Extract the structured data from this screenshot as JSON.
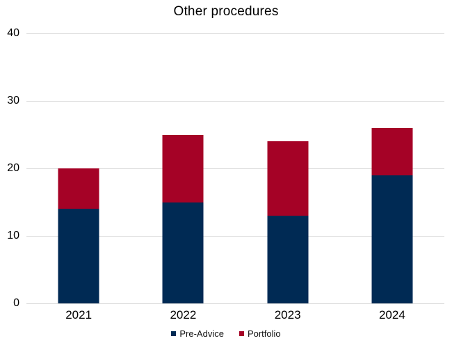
{
  "chart_data": {
    "type": "bar",
    "stacked": true,
    "title": "Other procedures",
    "categories": [
      "2021",
      "2022",
      "2023",
      "2024"
    ],
    "series": [
      {
        "name": "Pre-Advice",
        "color": "#002A54",
        "values": [
          14,
          15,
          13,
          19
        ]
      },
      {
        "name": "Portfolio",
        "color": "#A50226",
        "values": [
          6,
          10,
          11,
          7
        ]
      }
    ],
    "totals": [
      20,
      25,
      24,
      26
    ],
    "xlabel": "",
    "ylabel": "",
    "ylim": [
      0,
      40
    ],
    "yticks": [
      0,
      10,
      20,
      30,
      40
    ],
    "grid": true,
    "gridline_color": "#D9D9D9",
    "legend_position": "bottom",
    "legend_entries": [
      "Pre-Advice",
      "Portfolio"
    ]
  }
}
